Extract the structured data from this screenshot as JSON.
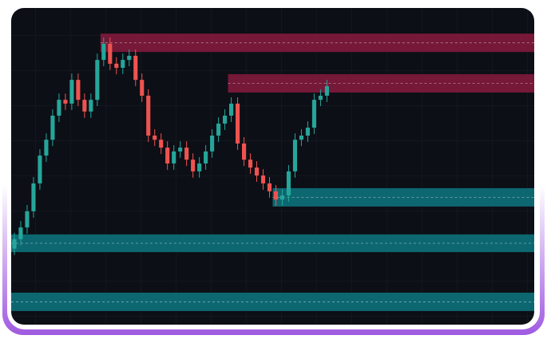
{
  "chart_data": {
    "type": "candlestick",
    "xlim": [
      0,
      82
    ],
    "ylim": [
      0,
      100
    ],
    "up_color": "#26a69a",
    "down_color": "#ef5350",
    "open": [
      24,
      27,
      30.7,
      35.8,
      44.6,
      53.4,
      58.4,
      66,
      71,
      69.8,
      77.3,
      71,
      67.3,
      71,
      83.6,
      88.7,
      82.4,
      81.1,
      83.6,
      84.9,
      77.3,
      72.3,
      59.7,
      58.4,
      55.9,
      50.9,
      54.7,
      55.9,
      52.1,
      48.4,
      50.9,
      54.7,
      59.7,
      63.5,
      66,
      69.8,
      57.2,
      52.1,
      49.6,
      47.1,
      44.6,
      42.1,
      39.5,
      40.8,
      48.4,
      58.4,
      59.7,
      62.2,
      71,
      72.3
    ],
    "high": [
      29,
      32.7,
      37.8,
      46.6,
      55.4,
      60.4,
      68,
      73,
      73,
      79.3,
      79.3,
      73,
      73,
      85.6,
      90.7,
      90.7,
      84.4,
      85.6,
      86.9,
      86.9,
      79.3,
      74.3,
      61.7,
      60.4,
      57.9,
      56.7,
      57.9,
      57.9,
      54.1,
      52.9,
      56.7,
      61.7,
      65.5,
      68,
      71.8,
      71.8,
      59.2,
      54.1,
      51.6,
      49.1,
      46.6,
      44.1,
      42.8,
      50.4,
      60.4,
      61.7,
      64.2,
      73,
      74.3,
      77.3
    ],
    "low": [
      22,
      25,
      28.7,
      33.8,
      42.6,
      51.4,
      56.4,
      64,
      67.8,
      67.8,
      69,
      65.3,
      65.3,
      69,
      81.6,
      80.4,
      79.1,
      79.1,
      81.6,
      75.3,
      70.3,
      57.7,
      56.4,
      53.9,
      48.9,
      48.9,
      52.7,
      50.1,
      46.4,
      46.4,
      48.9,
      52.7,
      57.7,
      61.5,
      64,
      55.2,
      50.1,
      47.6,
      45.1,
      42.6,
      40.1,
      37.5,
      37.5,
      38.8,
      46.4,
      56.4,
      57.7,
      60.2,
      69,
      70.3
    ],
    "close": [
      27,
      30.7,
      35.8,
      44.6,
      53.4,
      58.4,
      66,
      71,
      69.8,
      77.3,
      71,
      67.3,
      71,
      83.6,
      88.7,
      82.4,
      81.1,
      83.6,
      84.9,
      77.3,
      72.3,
      59.7,
      58.4,
      55.9,
      50.9,
      54.7,
      55.9,
      52.1,
      48.4,
      50.9,
      54.7,
      59.7,
      63.5,
      66,
      69.8,
      57.2,
      52.1,
      49.6,
      47.1,
      44.6,
      42.1,
      39.5,
      40.8,
      48.4,
      58.4,
      59.7,
      62.2,
      71,
      72.3,
      75.3
    ],
    "zones": [
      {
        "start": 14,
        "top": 91.9,
        "bottom": 86.1,
        "color": "#761838"
      },
      {
        "start": 34,
        "top": 79.1,
        "bottom": 73.3,
        "color": "#761838"
      },
      {
        "start": 41,
        "top": 43.1,
        "bottom": 37.3,
        "color": "#0d6771"
      },
      {
        "start": 0,
        "top": 28.5,
        "bottom": 22.9,
        "color": "#0d6771"
      },
      {
        "start": 0,
        "top": 10.1,
        "bottom": 4.3,
        "color": "#0d6771"
      }
    ]
  }
}
